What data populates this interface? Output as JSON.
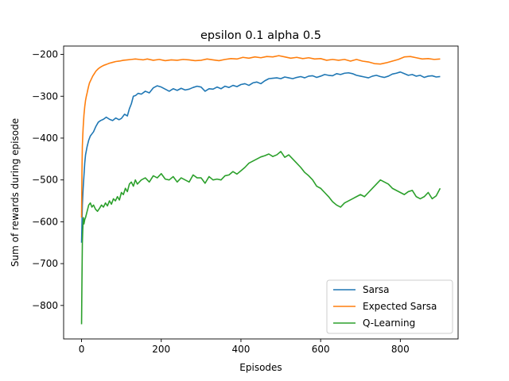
{
  "chart_data": {
    "type": "line",
    "title": "epsilon 0.1 alpha 0.5",
    "xlabel": "Episodes",
    "ylabel": "Sum of rewards during episode",
    "xlim": [
      -45,
      945
    ],
    "ylim": [
      -880,
      -180
    ],
    "xticks": [
      0,
      200,
      400,
      600,
      800
    ],
    "yticks": [
      -800,
      -700,
      -600,
      -500,
      -400,
      -300,
      -200
    ],
    "legend_position": "lower-right",
    "series": [
      {
        "name": "Sarsa",
        "color": "#1f77b4",
        "x": [
          0,
          2,
          4,
          6,
          8,
          10,
          14,
          18,
          22,
          26,
          30,
          36,
          42,
          48,
          55,
          62,
          70,
          78,
          86,
          94,
          100,
          108,
          115,
          120,
          125,
          130,
          136,
          142,
          150,
          160,
          170,
          180,
          190,
          200,
          210,
          220,
          230,
          240,
          250,
          260,
          270,
          280,
          290,
          300,
          310,
          320,
          330,
          340,
          350,
          360,
          370,
          380,
          390,
          400,
          410,
          420,
          430,
          440,
          450,
          460,
          470,
          480,
          490,
          500,
          510,
          520,
          530,
          540,
          550,
          560,
          570,
          580,
          590,
          600,
          610,
          620,
          630,
          640,
          650,
          660,
          670,
          680,
          690,
          700,
          710,
          720,
          730,
          740,
          750,
          760,
          770,
          780,
          790,
          800,
          810,
          820,
          830,
          840,
          850,
          860,
          870,
          880,
          890,
          900
        ],
        "y": [
          -650,
          -560,
          -520,
          -490,
          -460,
          -440,
          -420,
          -405,
          -395,
          -390,
          -385,
          -372,
          -362,
          -358,
          -355,
          -350,
          -355,
          -358,
          -352,
          -356,
          -353,
          -343,
          -347,
          -330,
          -318,
          -300,
          -298,
          -293,
          -295,
          -288,
          -292,
          -280,
          -275,
          -278,
          -283,
          -288,
          -282,
          -286,
          -281,
          -285,
          -283,
          -279,
          -276,
          -278,
          -288,
          -282,
          -283,
          -278,
          -282,
          -276,
          -279,
          -274,
          -277,
          -272,
          -270,
          -274,
          -268,
          -266,
          -270,
          -263,
          -258,
          -257,
          -256,
          -258,
          -254,
          -256,
          -258,
          -255,
          -253,
          -256,
          -252,
          -251,
          -255,
          -252,
          -248,
          -250,
          -251,
          -246,
          -248,
          -245,
          -244,
          -246,
          -250,
          -252,
          -254,
          -256,
          -252,
          -250,
          -253,
          -255,
          -252,
          -247,
          -245,
          -242,
          -246,
          -250,
          -248,
          -252,
          -250,
          -255,
          -252,
          -251,
          -254,
          -253
        ]
      },
      {
        "name": "Expected Sarsa",
        "color": "#ff7f0e",
        "x": [
          0,
          1,
          2,
          3,
          4,
          5,
          6,
          8,
          10,
          12,
          14,
          16,
          18,
          20,
          24,
          28,
          32,
          36,
          40,
          45,
          50,
          56,
          62,
          70,
          78,
          86,
          95,
          105,
          115,
          125,
          135,
          145,
          155,
          165,
          180,
          195,
          210,
          225,
          240,
          255,
          270,
          285,
          300,
          315,
          330,
          345,
          360,
          375,
          390,
          405,
          420,
          435,
          450,
          465,
          480,
          495,
          510,
          525,
          540,
          555,
          570,
          585,
          600,
          615,
          630,
          645,
          660,
          675,
          690,
          705,
          720,
          735,
          750,
          765,
          780,
          795,
          810,
          825,
          840,
          855,
          870,
          885,
          900
        ],
        "y": [
          -590,
          -480,
          -420,
          -395,
          -375,
          -360,
          -345,
          -325,
          -310,
          -300,
          -292,
          -283,
          -275,
          -268,
          -260,
          -252,
          -246,
          -240,
          -236,
          -232,
          -229,
          -226,
          -224,
          -221,
          -219,
          -217,
          -216,
          -214,
          -213,
          -212,
          -211,
          -212,
          -213,
          -211,
          -214,
          -212,
          -215,
          -213,
          -214,
          -212,
          -213,
          -215,
          -214,
          -211,
          -213,
          -215,
          -212,
          -210,
          -211,
          -207,
          -209,
          -206,
          -208,
          -205,
          -206,
          -203,
          -206,
          -209,
          -207,
          -210,
          -208,
          -211,
          -210,
          -214,
          -212,
          -214,
          -212,
          -216,
          -212,
          -216,
          -218,
          -222,
          -223,
          -220,
          -216,
          -212,
          -206,
          -205,
          -208,
          -211,
          -210,
          -212,
          -211
        ]
      },
      {
        "name": "Q-Learning",
        "color": "#2ca02c",
        "x": [
          0,
          1,
          2,
          3,
          4,
          5,
          6,
          8,
          10,
          14,
          18,
          22,
          26,
          30,
          35,
          40,
          45,
          50,
          55,
          60,
          65,
          70,
          75,
          80,
          85,
          90,
          95,
          100,
          105,
          110,
          115,
          120,
          125,
          130,
          135,
          140,
          150,
          160,
          170,
          180,
          190,
          200,
          210,
          220,
          230,
          240,
          250,
          260,
          270,
          280,
          290,
          300,
          310,
          320,
          330,
          340,
          350,
          360,
          370,
          380,
          390,
          400,
          410,
          420,
          430,
          440,
          450,
          460,
          470,
          480,
          490,
          500,
          510,
          520,
          530,
          540,
          550,
          560,
          570,
          580,
          590,
          600,
          610,
          620,
          630,
          640,
          650,
          660,
          670,
          680,
          690,
          700,
          710,
          720,
          730,
          740,
          750,
          760,
          770,
          780,
          790,
          800,
          810,
          820,
          830,
          840,
          850,
          860,
          870,
          880,
          890,
          900
        ],
        "y": [
          -845,
          -740,
          -650,
          -620,
          -600,
          -590,
          -605,
          -595,
          -590,
          -575,
          -560,
          -555,
          -565,
          -560,
          -570,
          -575,
          -568,
          -560,
          -565,
          -555,
          -562,
          -550,
          -558,
          -545,
          -550,
          -540,
          -548,
          -530,
          -535,
          -520,
          -528,
          -510,
          -505,
          -515,
          -500,
          -510,
          -500,
          -495,
          -505,
          -490,
          -495,
          -485,
          -498,
          -500,
          -492,
          -505,
          -495,
          -500,
          -505,
          -488,
          -495,
          -495,
          -508,
          -492,
          -500,
          -498,
          -500,
          -490,
          -488,
          -480,
          -486,
          -478,
          -470,
          -460,
          -455,
          -450,
          -445,
          -442,
          -438,
          -444,
          -440,
          -432,
          -446,
          -440,
          -450,
          -460,
          -470,
          -482,
          -490,
          -500,
          -515,
          -520,
          -530,
          -540,
          -552,
          -560,
          -565,
          -555,
          -550,
          -545,
          -540,
          -535,
          -540,
          -530,
          -520,
          -510,
          -500,
          -505,
          -510,
          -520,
          -525,
          -530,
          -535,
          -528,
          -525,
          -540,
          -545,
          -540,
          -530,
          -545,
          -538,
          -520
        ]
      }
    ]
  }
}
